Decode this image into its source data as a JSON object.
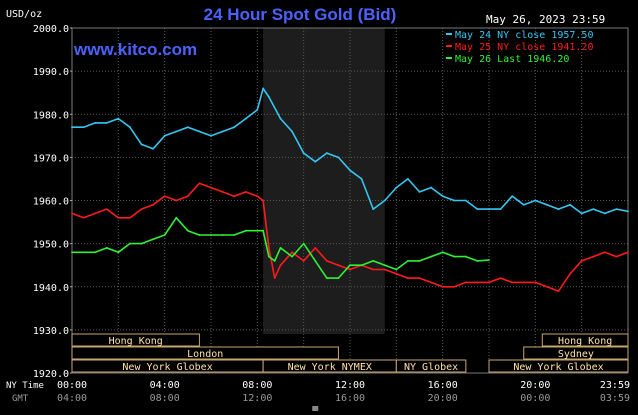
{
  "header": {
    "unit_label": "USD/oz",
    "title": "24 Hour Spot Gold (Bid)",
    "timestamp": "May 26, 2023 23:59",
    "site": "www.kitco.com"
  },
  "legend": [
    {
      "label": "May 24 NY close 1957.50",
      "color": "#35c6f2"
    },
    {
      "label": "May 25 NY close 1941.20",
      "color": "#ff1b1b"
    },
    {
      "label": "May 26 Last 1946.20",
      "color": "#2ef234"
    }
  ],
  "time_axis": {
    "ny_label": "NY Time",
    "gmt_label": "GMT",
    "ny_ticks": [
      "00:00",
      "04:00",
      "08:00",
      "12:00",
      "16:00",
      "20:00",
      "23:59"
    ],
    "gmt_ticks": [
      "04:00",
      "08:00",
      "12:00",
      "16:00",
      "20:00",
      "00:00",
      "03:59"
    ]
  },
  "sessions": [
    {
      "label": "Hong Kong",
      "row": 0,
      "start": 0.0,
      "end": 5.5
    },
    {
      "label": "London",
      "row": 1,
      "start": 0.0,
      "end": 11.5
    },
    {
      "label": "New York Globex",
      "row": 2,
      "start": 0.0,
      "end": 8.25
    },
    {
      "label": "New York NYMEX",
      "row": 2,
      "start": 8.25,
      "end": 14.0
    },
    {
      "label": "NY Globex",
      "row": 2,
      "start": 14.0,
      "end": 17.0
    },
    {
      "label": "Hong Kong",
      "row": 0,
      "start": 20.3,
      "end": 24.0
    },
    {
      "label": "Sydney",
      "row": 1,
      "start": 19.5,
      "end": 24.0
    },
    {
      "label": "New York Globex",
      "row": 2,
      "start": 18.0,
      "end": 24.0
    }
  ],
  "colors": {
    "background": "#000000",
    "plot_bg": "#000000",
    "nymex_shade": "#1d1d1d",
    "grid": "#5a5a5a",
    "title": "#4b62ff",
    "site": "#4b62ff",
    "session_text": "#ffe2a6",
    "session_border": "#c8a76b",
    "axis_text": "#ffffff",
    "gmt_text": "#9a9a9a"
  },
  "chart_data": {
    "type": "line",
    "ylabel": "USD/oz",
    "ylim": [
      1920,
      2000
    ],
    "xlim": [
      0,
      24
    ],
    "y_ticks": [
      1920.0,
      1930.0,
      1940.0,
      1950.0,
      1960.0,
      1970.0,
      1980.0,
      1990.0,
      2000.0
    ],
    "y_tick_labels": [
      "1920.0",
      "1930.0",
      "1940.0",
      "1950.0",
      "1960.0",
      "1970.0",
      "1980.0",
      "1990.0",
      "2000.0"
    ],
    "grid": true,
    "legend_position": "top-right",
    "shaded_region": [
      8.25,
      13.5
    ],
    "series": [
      {
        "name": "May 24 NY close 1957.50",
        "color": "#35c6f2",
        "x": [
          0,
          0.5,
          1.0,
          1.5,
          2.0,
          2.5,
          3.0,
          3.5,
          4.0,
          4.5,
          5.0,
          5.5,
          6.0,
          6.5,
          7.0,
          7.5,
          8.0,
          8.25,
          8.5,
          9.0,
          9.5,
          10.0,
          10.5,
          11.0,
          11.5,
          12.0,
          12.5,
          13.0,
          13.5,
          14.0,
          14.5,
          15.0,
          15.5,
          16.0,
          16.5,
          17.0,
          17.5,
          18.0,
          18.5,
          19.0,
          19.5,
          20.0,
          20.5,
          21.0,
          21.5,
          22.0,
          22.5,
          23.0,
          23.5,
          24.0
        ],
        "values": [
          1977,
          1977,
          1978,
          1978,
          1979,
          1977,
          1973,
          1972,
          1975,
          1976,
          1977,
          1976,
          1975,
          1976,
          1977,
          1979,
          1981,
          1986,
          1984,
          1979,
          1976,
          1971,
          1969,
          1971,
          1970,
          1967,
          1965,
          1958,
          1960,
          1963,
          1965,
          1962,
          1963,
          1961,
          1960,
          1960,
          1958,
          1958,
          1958,
          1961,
          1959,
          1960,
          1959,
          1958,
          1959,
          1957,
          1958,
          1957,
          1958,
          1957.5
        ]
      },
      {
        "name": "May 25 NY close 1941.20",
        "color": "#ff1b1b",
        "x": [
          0,
          0.5,
          1.0,
          1.5,
          2.0,
          2.5,
          3.0,
          3.5,
          4.0,
          4.5,
          5.0,
          5.5,
          6.0,
          6.5,
          7.0,
          7.5,
          8.0,
          8.25,
          8.5,
          8.75,
          9.0,
          9.5,
          10.0,
          10.5,
          11.0,
          11.5,
          12.0,
          12.5,
          13.0,
          13.5,
          14.0,
          14.5,
          15.0,
          15.5,
          16.0,
          16.5,
          17.0,
          17.5,
          18.0,
          18.5,
          19.0,
          19.5,
          20.0,
          20.5,
          21.0,
          21.5,
          22.0,
          22.5,
          23.0,
          23.5,
          24.0
        ],
        "values": [
          1957,
          1956,
          1957,
          1958,
          1956,
          1956,
          1958,
          1959,
          1961,
          1960,
          1961,
          1964,
          1963,
          1962,
          1961,
          1962,
          1961,
          1960,
          1949,
          1942,
          1945,
          1948,
          1946,
          1949,
          1946,
          1945,
          1944,
          1945,
          1944,
          1944,
          1943,
          1942,
          1942,
          1941,
          1940,
          1940,
          1941,
          1941,
          1941,
          1942,
          1941,
          1941,
          1941,
          1940,
          1939,
          1943,
          1946,
          1947,
          1948,
          1947,
          1948
        ]
      },
      {
        "name": "May 26 Last 1946.20",
        "color": "#2ef234",
        "x": [
          0,
          0.5,
          1.0,
          1.5,
          2.0,
          2.5,
          3.0,
          3.5,
          4.0,
          4.5,
          5.0,
          5.5,
          6.0,
          6.5,
          7.0,
          7.5,
          8.0,
          8.25,
          8.5,
          8.75,
          9.0,
          9.5,
          10.0,
          10.5,
          11.0,
          11.5,
          12.0,
          12.5,
          13.0,
          13.5,
          14.0,
          14.5,
          15.0,
          15.5,
          16.0,
          16.5,
          17.0,
          17.5,
          18.0
        ],
        "values": [
          1948,
          1948,
          1948,
          1949,
          1948,
          1950,
          1950,
          1951,
          1952,
          1956,
          1953,
          1952,
          1952,
          1952,
          1952,
          1953,
          1953,
          1953,
          1947,
          1946,
          1949,
          1947,
          1950,
          1946,
          1942,
          1942,
          1945,
          1945,
          1946,
          1945,
          1944,
          1946,
          1946,
          1947,
          1948,
          1947,
          1947,
          1946,
          1946.2
        ]
      }
    ]
  }
}
